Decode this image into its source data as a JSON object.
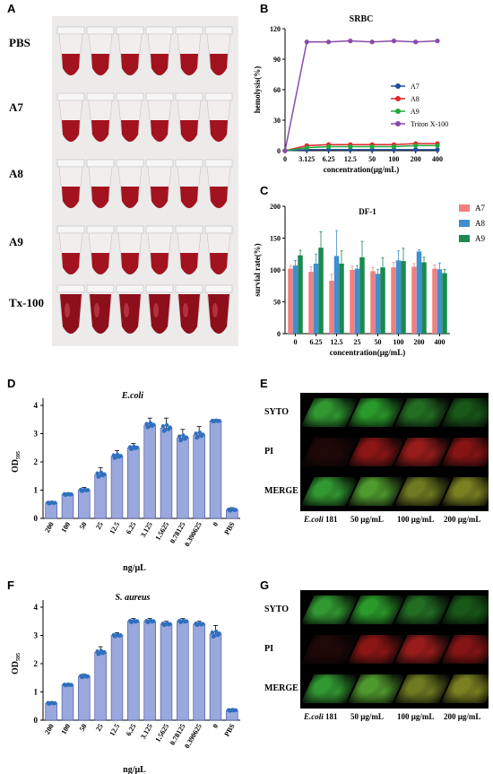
{
  "panels": {
    "A": "A",
    "B": "B",
    "C": "C",
    "D": "D",
    "E": "E",
    "F": "F",
    "G": "G"
  },
  "photo_rows": [
    "PBS",
    "A7",
    "A8",
    "A9",
    "Tx-100"
  ],
  "conf_E": {
    "rows": [
      "SYTO",
      "PI",
      "MERGE"
    ],
    "cols": [
      "E.coli 181",
      "50 μg/mL",
      "100 μg/mL",
      "200 μg/mL"
    ]
  },
  "conf_G": {
    "rows": [
      "SYTO",
      "PI",
      "MERGE"
    ],
    "cols": [
      "E.coli 181",
      "50 μg/mL",
      "100 μg/mL",
      "200 μg/mL"
    ]
  },
  "chart_data": [
    {
      "id": "B",
      "type": "line",
      "title": "SRBC",
      "xlabel": "concentration(μg/mL)",
      "ylabel": "hemolysis(%)",
      "categories": [
        "0",
        "3.125",
        "6.25",
        "12.5",
        "50",
        "100",
        "200",
        "400"
      ],
      "ylim": [
        0,
        120
      ],
      "yticks": [
        0,
        30,
        60,
        90,
        120
      ],
      "legend_position": "right",
      "series": [
        {
          "name": "A7",
          "color": "#1f4e9c",
          "values": [
            0,
            1,
            1,
            1,
            1,
            1,
            1,
            1
          ]
        },
        {
          "name": "A8",
          "color": "#e3242b",
          "values": [
            0,
            5,
            6,
            6,
            6,
            6,
            7,
            7
          ]
        },
        {
          "name": "A9",
          "color": "#22a83a",
          "values": [
            0,
            3,
            4,
            4,
            4,
            4,
            5,
            5
          ]
        },
        {
          "name": "Triton X-100",
          "color": "#8b4aab",
          "values": [
            0,
            107,
            107,
            108,
            107,
            108,
            107,
            108
          ]
        }
      ]
    },
    {
      "id": "C",
      "type": "bar",
      "title": "DF-1",
      "xlabel": "concentration(μg/mL)",
      "ylabel": "survial rate(%)",
      "categories": [
        "0",
        "6.25",
        "12.5",
        "25",
        "50",
        "100",
        "200",
        "400"
      ],
      "ylim": [
        0,
        200
      ],
      "yticks": [
        0,
        50,
        100,
        150,
        200
      ],
      "legend_position": "right",
      "series": [
        {
          "name": "A7",
          "color": "#f08080",
          "values": [
            102,
            97,
            83,
            100,
            98,
            104,
            105,
            102
          ],
          "errors": [
            5,
            8,
            10,
            6,
            6,
            8,
            5,
            6
          ]
        },
        {
          "name": "A8",
          "color": "#3f8fd0",
          "values": [
            107,
            110,
            122,
            102,
            94,
            115,
            129,
            101
          ],
          "errors": [
            8,
            15,
            40,
            5,
            7,
            15,
            3,
            10
          ]
        },
        {
          "name": "A9",
          "color": "#1a8a50",
          "values": [
            123,
            135,
            110,
            120,
            104,
            114,
            112,
            95
          ],
          "errors": [
            8,
            25,
            20,
            25,
            15,
            20,
            8,
            6
          ]
        }
      ]
    },
    {
      "id": "D",
      "type": "bar",
      "title": "E.coli",
      "xlabel": "ng/μL",
      "ylabel": "OD",
      "ylabel_sub": "595",
      "categories": [
        "200",
        "100",
        "50",
        "25",
        "12.5",
        "6.25",
        "3.125",
        "1.5625",
        "0.78125",
        "0.390625",
        "0",
        "PBS"
      ],
      "ylim": [
        0,
        4
      ],
      "yticks": [
        0,
        1,
        2,
        3,
        4
      ],
      "bar_color": "#9aa8dd",
      "dot_color": "#2f6fc0",
      "values": [
        0.55,
        0.85,
        1.0,
        1.55,
        2.2,
        2.5,
        3.3,
        3.2,
        2.85,
        2.95,
        3.45,
        0.3
      ],
      "errors": [
        0.05,
        0.05,
        0.1,
        0.25,
        0.2,
        0.15,
        0.25,
        0.35,
        0.3,
        0.3,
        0.05,
        0.08
      ]
    },
    {
      "id": "F",
      "type": "bar",
      "title": "S. aureus",
      "xlabel": "ng/μL",
      "ylabel": "OD",
      "ylabel_sub": "595",
      "categories": [
        "200",
        "100",
        "50",
        "25",
        "12.5",
        "6.25",
        "3.125",
        "1.5625",
        "0.78125",
        "0.390625",
        "0",
        "PBS"
      ],
      "ylim": [
        0,
        4
      ],
      "yticks": [
        0,
        1,
        2,
        3,
        4
      ],
      "bar_color": "#9aa8dd",
      "dot_color": "#2f6fc0",
      "values": [
        0.6,
        1.25,
        1.55,
        2.4,
        3.0,
        3.5,
        3.5,
        3.4,
        3.5,
        3.4,
        3.05,
        0.35
      ],
      "errors": [
        0.05,
        0.05,
        0.08,
        0.2,
        0.1,
        0.1,
        0.1,
        0.1,
        0.1,
        0.1,
        0.3,
        0.05
      ]
    }
  ]
}
